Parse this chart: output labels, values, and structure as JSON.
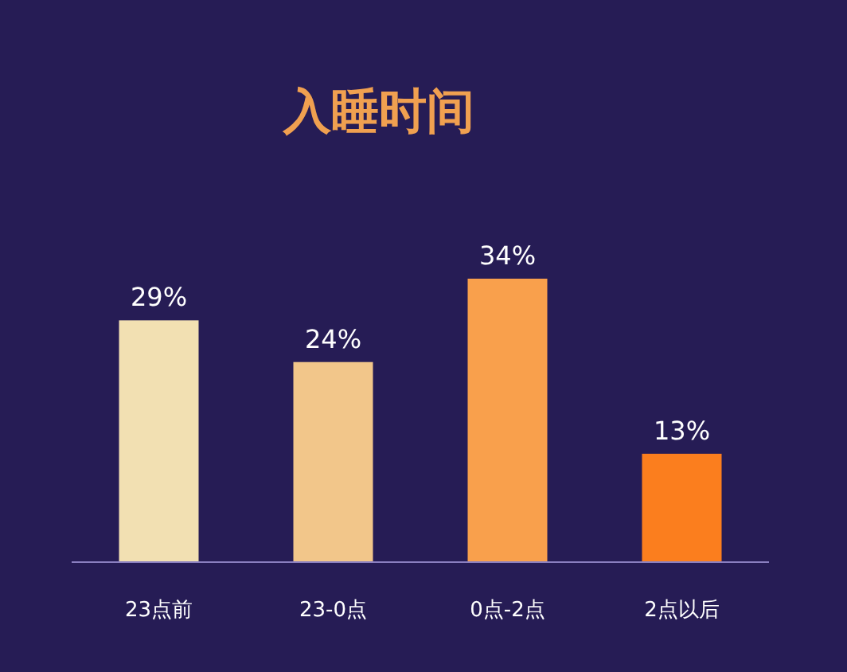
{
  "chart_data": {
    "type": "bar",
    "title": "入睡时间",
    "categories": [
      "23点前",
      "23-0点",
      "0点-2点",
      "2点以后"
    ],
    "values": [
      29,
      24,
      34,
      13
    ],
    "value_labels": [
      "29%",
      "24%",
      "34%",
      "13%"
    ],
    "colors": [
      "#f2e0b2",
      "#f2c68a",
      "#f9a04c",
      "#fb7e1e"
    ]
  }
}
